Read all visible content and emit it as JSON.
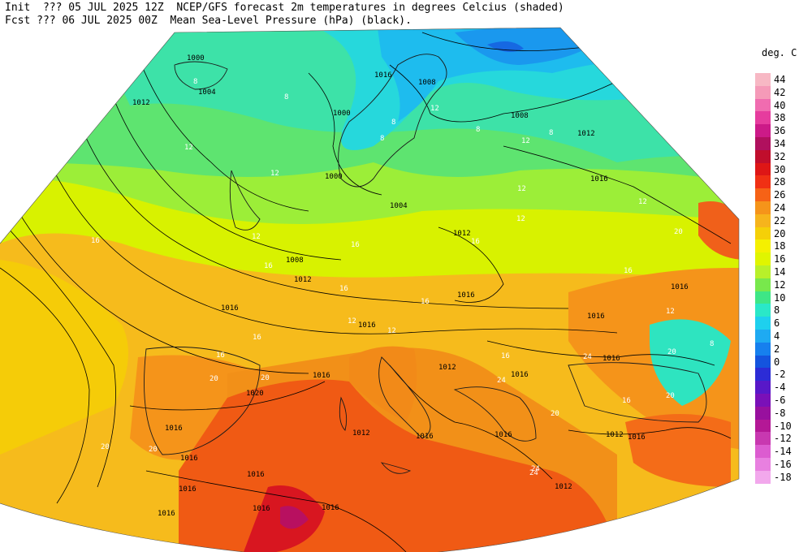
{
  "header": {
    "line1": "Init  ??? 05 JUL 2025 12Z  NCEP/GFS forecast 2m temperatures in degrees Celcius (shaded)",
    "line2": "Fcst ??? 06 JUL 2025 00Z  Mean Sea-Level Pressure (hPa) (black)."
  },
  "legend": {
    "title": "deg. C",
    "entries": [
      {
        "label": "44",
        "color": "#f7b8c4"
      },
      {
        "label": "42",
        "color": "#f59ab8"
      },
      {
        "label": "40",
        "color": "#f06cb0"
      },
      {
        "label": "38",
        "color": "#e63c9e"
      },
      {
        "label": "36",
        "color": "#cc1a88"
      },
      {
        "label": "34",
        "color": "#b0105e"
      },
      {
        "label": "32",
        "color": "#c00e2c"
      },
      {
        "label": "30",
        "color": "#de1616"
      },
      {
        "label": "28",
        "color": "#f03014"
      },
      {
        "label": "26",
        "color": "#f66216"
      },
      {
        "label": "24",
        "color": "#f5941a"
      },
      {
        "label": "22",
        "color": "#f6b41c"
      },
      {
        "label": "20",
        "color": "#f5d008"
      },
      {
        "label": "18",
        "color": "#f5f000"
      },
      {
        "label": "16",
        "color": "#e0f500"
      },
      {
        "label": "14",
        "color": "#b8f02a"
      },
      {
        "label": "12",
        "color": "#78e84c"
      },
      {
        "label": "10",
        "color": "#3ee686"
      },
      {
        "label": "8",
        "color": "#2ae8c8"
      },
      {
        "label": "6",
        "color": "#1ed0ee"
      },
      {
        "label": "4",
        "color": "#1eaaf2"
      },
      {
        "label": "2",
        "color": "#1680ee"
      },
      {
        "label": "0",
        "color": "#1454de"
      },
      {
        "label": "-2",
        "color": "#2c2cd6"
      },
      {
        "label": "-4",
        "color": "#5818c8"
      },
      {
        "label": "-6",
        "color": "#7a10b8"
      },
      {
        "label": "-8",
        "color": "#98109e"
      },
      {
        "label": "-10",
        "color": "#b41896"
      },
      {
        "label": "-12",
        "color": "#c838b0"
      },
      {
        "label": "-14",
        "color": "#dc5cd0"
      },
      {
        "label": "-16",
        "color": "#e880e0"
      },
      {
        "label": "-18",
        "color": "#f2a8ec"
      }
    ]
  },
  "map": {
    "isobar_labels": [
      "1000",
      "1004",
      "1012",
      "1000",
      "1008",
      "1008",
      "1012",
      "1000",
      "1004",
      "1016",
      "1012",
      "1008",
      "1012",
      "1016",
      "1016",
      "1016",
      "1016",
      "1016",
      "1012",
      "1016",
      "1016",
      "1016",
      "1016",
      "1020",
      "1016",
      "1016",
      "1012",
      "1016",
      "1016",
      "1016",
      "1016",
      "1012",
      "1016",
      "1016",
      "1016",
      "1016",
      "1012"
    ],
    "temp_labels": [
      "8",
      "8",
      "12",
      "12",
      "8",
      "12",
      "8",
      "12",
      "16",
      "12",
      "16",
      "12",
      "16",
      "16",
      "16",
      "16",
      "16",
      "12",
      "16",
      "12",
      "12",
      "20",
      "24",
      "20",
      "16",
      "20",
      "20",
      "24",
      "12",
      "8",
      "16",
      "20",
      "24",
      "20",
      "20",
      "16",
      "20",
      "12",
      "8",
      "8",
      "24"
    ]
  }
}
